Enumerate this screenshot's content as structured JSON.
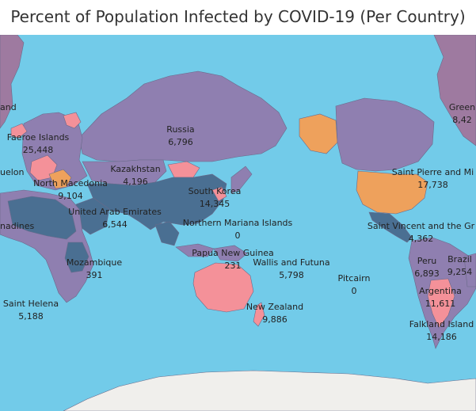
{
  "title": "Percent of Population Infected by COVID-19 (Per Country)",
  "colors": {
    "ocean": "#72cbe9",
    "low": "#4a6f92",
    "medium": "#8f7fb0",
    "high": "#9e7aa0",
    "very_high": "#f49199",
    "highest": "#eea15c",
    "antarctica": "#f0efec"
  },
  "labels": [
    {
      "name": "Russia",
      "value": "6,796"
    },
    {
      "name": "Faeroe Islands",
      "value": "25,448"
    },
    {
      "name": "Kazakhstan",
      "value": "4,196"
    },
    {
      "name": "North Macedonia",
      "value": "9,104"
    },
    {
      "name": "South Korea",
      "value": "14,345"
    },
    {
      "name": "United Arab Emirates",
      "value": "6,544"
    },
    {
      "name": "Northern Mariana Islands",
      "value": "0"
    },
    {
      "name": "Papua New Guinea",
      "value": "231"
    },
    {
      "name": "Wallis and Futuna",
      "value": "5,798"
    },
    {
      "name": "Pitcairn",
      "value": "0"
    },
    {
      "name": "Mozambique",
      "value": "391"
    },
    {
      "name": "Saint Helena",
      "value": "5,188"
    },
    {
      "name": "New Zealand",
      "value": "9,886"
    },
    {
      "name": "Saint Pierre and Mi",
      "value": "17,738"
    },
    {
      "name": "Saint Vincent and the Gr",
      "value": "4,362"
    },
    {
      "name": "Peru",
      "value": "6,893"
    },
    {
      "name": "Brazil",
      "value": "9,254"
    },
    {
      "name": "Argentina",
      "value": "11,611"
    },
    {
      "name": "Falkland Island",
      "value": "14,186"
    },
    {
      "name": "Green",
      "value": "8,42"
    },
    {
      "name": "and",
      "value": ""
    },
    {
      "name": "uelon",
      "value": ""
    },
    {
      "name": "nadines",
      "value": ""
    }
  ]
}
